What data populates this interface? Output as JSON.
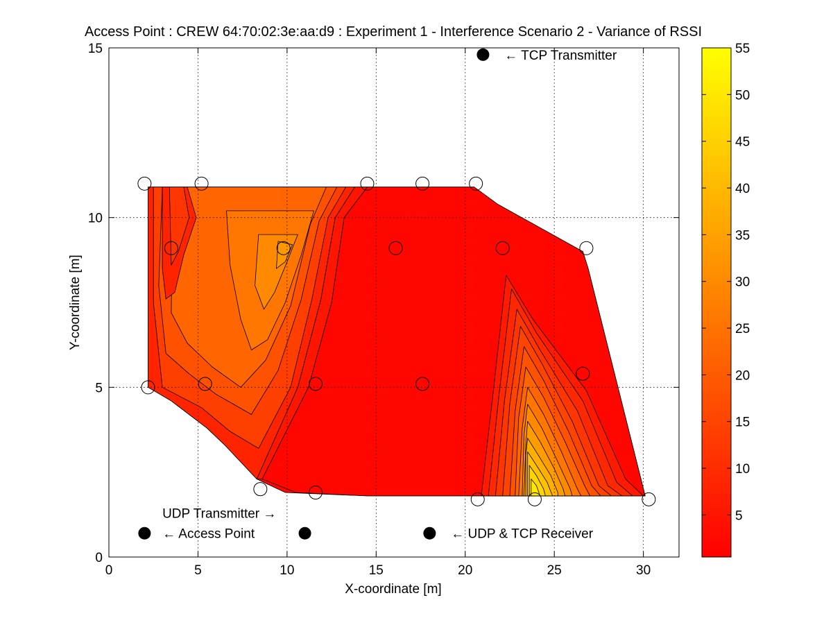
{
  "chart_data": {
    "type": "contour",
    "title": "Access Point : CREW 64:70:02:3e:aa:d9 : Experiment 1 - Interference Scenario 2 - Variance of RSSI",
    "xlabel": "X-coordinate [m]",
    "ylabel": "Y-coordinate [m]",
    "xlim": [
      0,
      32
    ],
    "ylim": [
      0,
      15
    ],
    "xticks": [
      0,
      5,
      10,
      15,
      20,
      25,
      30
    ],
    "yticks": [
      0,
      5,
      10,
      15
    ],
    "grid": true,
    "colormap": "autumn",
    "colorbar": {
      "range": [
        0.5,
        55
      ],
      "ticks": [
        5,
        10,
        15,
        20,
        25,
        30,
        35,
        40,
        45,
        50,
        55
      ],
      "colors": [
        "#ff0000",
        "#ffff00"
      ]
    },
    "measurement_points": [
      {
        "x": 2.0,
        "y": 11.0
      },
      {
        "x": 5.2,
        "y": 11.0
      },
      {
        "x": 14.5,
        "y": 11.0
      },
      {
        "x": 17.6,
        "y": 11.0
      },
      {
        "x": 20.6,
        "y": 11.0
      },
      {
        "x": 3.5,
        "y": 9.1
      },
      {
        "x": 9.8,
        "y": 9.1
      },
      {
        "x": 16.1,
        "y": 9.1
      },
      {
        "x": 22.1,
        "y": 9.1
      },
      {
        "x": 26.8,
        "y": 9.1
      },
      {
        "x": 2.2,
        "y": 5.0
      },
      {
        "x": 5.4,
        "y": 5.1
      },
      {
        "x": 11.6,
        "y": 5.1
      },
      {
        "x": 17.6,
        "y": 5.1
      },
      {
        "x": 26.6,
        "y": 5.4
      },
      {
        "x": 8.5,
        "y": 2.0
      },
      {
        "x": 11.6,
        "y": 1.9
      },
      {
        "x": 20.7,
        "y": 1.7
      },
      {
        "x": 23.9,
        "y": 1.7
      },
      {
        "x": 30.3,
        "y": 1.7
      }
    ],
    "domain_polygon": [
      [
        2.2,
        10.9
      ],
      [
        20.5,
        10.9
      ],
      [
        21.8,
        10.4
      ],
      [
        26.6,
        9.0
      ],
      [
        26.9,
        8.5
      ],
      [
        30.1,
        1.8
      ],
      [
        18.7,
        1.8
      ],
      [
        14.5,
        1.8
      ],
      [
        9.9,
        1.9
      ],
      [
        8.3,
        2.3
      ],
      [
        6.5,
        3.3
      ],
      [
        5.5,
        3.8
      ],
      [
        3.5,
        4.6
      ],
      [
        2.2,
        5.0
      ]
    ],
    "contour_regions": [
      {
        "level": 2,
        "polygon": [
          [
            14.5,
            10.9
          ],
          [
            20.5,
            10.9
          ],
          [
            21.8,
            10.4
          ],
          [
            26.6,
            9.0
          ],
          [
            26.9,
            8.5
          ],
          [
            30.1,
            1.8
          ],
          [
            14.5,
            1.8
          ],
          [
            10.5,
            1.9
          ],
          [
            8.6,
            2.3
          ],
          [
            11.2,
            5.0
          ],
          [
            12.5,
            7.5
          ],
          [
            13.2,
            10.0
          ]
        ]
      },
      {
        "level": 5,
        "polygon": [
          [
            13.8,
            10.9
          ],
          [
            14.5,
            10.9
          ],
          [
            13.2,
            10.0
          ],
          [
            12.5,
            7.5
          ],
          [
            11.2,
            5.0
          ],
          [
            8.6,
            2.3
          ],
          [
            8.3,
            2.3
          ],
          [
            10.6,
            5.0
          ],
          [
            11.9,
            7.6
          ],
          [
            12.7,
            10.0
          ]
        ]
      },
      {
        "level": 8,
        "polygon": [
          [
            2.2,
            10.9
          ],
          [
            13.8,
            10.9
          ],
          [
            12.7,
            10.0
          ],
          [
            11.9,
            7.6
          ],
          [
            10.6,
            5.0
          ],
          [
            8.3,
            2.3
          ],
          [
            6.5,
            3.3
          ],
          [
            5.5,
            3.8
          ],
          [
            3.5,
            4.6
          ],
          [
            2.2,
            5.0
          ]
        ]
      },
      {
        "level": 14,
        "polygon": [
          [
            2.5,
            10.9
          ],
          [
            13.3,
            10.9
          ],
          [
            12.3,
            10.0
          ],
          [
            11.4,
            7.6
          ],
          [
            10.2,
            5.0
          ],
          [
            8.4,
            3.2
          ],
          [
            6.8,
            3.7
          ],
          [
            5.2,
            4.4
          ],
          [
            3.0,
            5.0
          ],
          [
            2.5,
            7.5
          ]
        ]
      },
      {
        "level": 18,
        "polygon": [
          [
            3.0,
            10.9
          ],
          [
            12.8,
            10.9
          ],
          [
            11.8,
            9.9
          ],
          [
            10.8,
            7.6
          ],
          [
            9.5,
            5.5
          ],
          [
            8.0,
            4.2
          ],
          [
            6.0,
            4.8
          ],
          [
            4.5,
            5.4
          ],
          [
            3.2,
            6.0
          ],
          [
            2.8,
            8.0
          ]
        ]
      },
      {
        "level": 22,
        "polygon": [
          [
            3.6,
            10.9
          ],
          [
            12.2,
            10.9
          ],
          [
            11.3,
            9.8
          ],
          [
            10.2,
            7.4
          ],
          [
            8.8,
            5.8
          ],
          [
            7.4,
            5.0
          ],
          [
            5.8,
            5.6
          ],
          [
            4.4,
            6.3
          ],
          [
            3.5,
            7.2
          ]
        ]
      },
      {
        "level": 8,
        "polygon": [
          [
            3.0,
            10.9
          ],
          [
            4.4,
            10.9
          ],
          [
            4.9,
            10.0
          ],
          [
            4.2,
            8.9
          ],
          [
            3.7,
            7.8
          ],
          [
            3.2,
            7.6
          ],
          [
            3.0,
            8.5
          ]
        ]
      },
      {
        "level": 12,
        "polygon": [
          [
            3.4,
            10.9
          ],
          [
            4.2,
            10.9
          ],
          [
            4.5,
            10.0
          ],
          [
            3.9,
            9.0
          ],
          [
            3.5,
            8.6
          ]
        ]
      },
      {
        "level": 26,
        "polygon": [
          [
            6.6,
            10.2
          ],
          [
            11.5,
            10.2
          ],
          [
            10.8,
            8.9
          ],
          [
            9.9,
            7.5
          ],
          [
            8.9,
            6.4
          ],
          [
            8.0,
            6.1
          ],
          [
            7.4,
            7.0
          ],
          [
            6.8,
            8.6
          ]
        ]
      },
      {
        "level": 30,
        "polygon": [
          [
            8.4,
            9.5
          ],
          [
            10.6,
            9.5
          ],
          [
            10.0,
            8.7
          ],
          [
            9.3,
            7.8
          ],
          [
            8.7,
            7.3
          ],
          [
            8.2,
            8.0
          ]
        ]
      },
      {
        "level": 33,
        "polygon": [
          [
            9.5,
            9.3
          ],
          [
            10.3,
            9.2
          ],
          [
            9.9,
            8.7
          ],
          [
            9.4,
            8.5
          ]
        ]
      },
      {
        "level": 6,
        "polygon": [
          [
            22.3,
            8.3
          ],
          [
            23.8,
            7.0
          ],
          [
            26.8,
            4.9
          ],
          [
            29.0,
            2.3
          ],
          [
            30.0,
            1.8
          ],
          [
            20.9,
            1.8
          ],
          [
            21.6,
            5.0
          ]
        ]
      },
      {
        "level": 9,
        "polygon": [
          [
            22.6,
            7.9
          ],
          [
            24.0,
            6.6
          ],
          [
            26.6,
            4.6
          ],
          [
            28.5,
            2.2
          ],
          [
            29.4,
            1.8
          ],
          [
            21.3,
            1.8
          ],
          [
            21.9,
            4.8
          ]
        ]
      },
      {
        "level": 12,
        "polygon": [
          [
            22.9,
            7.3
          ],
          [
            24.2,
            6.1
          ],
          [
            26.3,
            4.3
          ],
          [
            28.0,
            2.1
          ],
          [
            28.8,
            1.8
          ],
          [
            21.7,
            1.8
          ],
          [
            22.2,
            4.6
          ]
        ]
      },
      {
        "level": 15,
        "polygon": [
          [
            23.1,
            6.8
          ],
          [
            24.3,
            5.7
          ],
          [
            26.0,
            4.0
          ],
          [
            27.5,
            2.1
          ],
          [
            28.2,
            1.8
          ],
          [
            22.1,
            1.8
          ],
          [
            22.5,
            4.5
          ]
        ]
      },
      {
        "level": 18,
        "polygon": [
          [
            23.3,
            6.2
          ],
          [
            24.4,
            5.2
          ],
          [
            25.8,
            3.7
          ],
          [
            27.1,
            2.1
          ],
          [
            27.6,
            1.8
          ],
          [
            22.5,
            1.8
          ],
          [
            22.8,
            4.3
          ]
        ]
      },
      {
        "level": 22,
        "polygon": [
          [
            23.4,
            5.6
          ],
          [
            24.4,
            4.7
          ],
          [
            25.6,
            3.4
          ],
          [
            26.7,
            2.1
          ],
          [
            27.0,
            1.8
          ],
          [
            22.8,
            1.8
          ],
          [
            23.0,
            4.1
          ]
        ]
      },
      {
        "level": 26,
        "polygon": [
          [
            23.5,
            5.0
          ],
          [
            24.4,
            4.2
          ],
          [
            25.4,
            3.1
          ],
          [
            26.3,
            2.0
          ],
          [
            26.5,
            1.8
          ],
          [
            23.0,
            1.8
          ],
          [
            23.2,
            3.8
          ]
        ]
      },
      {
        "level": 30,
        "polygon": [
          [
            23.5,
            4.5
          ],
          [
            24.3,
            3.8
          ],
          [
            25.2,
            2.8
          ],
          [
            25.9,
            2.0
          ],
          [
            26.0,
            1.8
          ],
          [
            23.2,
            1.8
          ],
          [
            23.3,
            3.6
          ]
        ]
      },
      {
        "level": 34,
        "polygon": [
          [
            23.5,
            4.0
          ],
          [
            24.2,
            3.4
          ],
          [
            25.0,
            2.6
          ],
          [
            25.5,
            2.0
          ],
          [
            25.6,
            1.8
          ],
          [
            23.3,
            1.8
          ],
          [
            23.4,
            3.3
          ]
        ]
      },
      {
        "level": 38,
        "polygon": [
          [
            23.5,
            3.5
          ],
          [
            24.1,
            3.0
          ],
          [
            24.8,
            2.4
          ],
          [
            25.2,
            1.9
          ],
          [
            25.2,
            1.8
          ],
          [
            23.4,
            1.8
          ],
          [
            23.4,
            3.0
          ]
        ]
      },
      {
        "level": 42,
        "polygon": [
          [
            23.5,
            3.1
          ],
          [
            24.0,
            2.7
          ],
          [
            24.6,
            2.2
          ],
          [
            24.9,
            1.8
          ],
          [
            23.5,
            1.8
          ],
          [
            23.5,
            2.7
          ]
        ]
      },
      {
        "level": 46,
        "polygon": [
          [
            23.6,
            2.7
          ],
          [
            24.0,
            2.4
          ],
          [
            24.4,
            2.0
          ],
          [
            24.5,
            1.8
          ],
          [
            23.6,
            1.8
          ]
        ]
      },
      {
        "level": 50,
        "polygon": [
          [
            23.7,
            2.3
          ],
          [
            24.0,
            2.1
          ],
          [
            24.2,
            1.8
          ],
          [
            23.7,
            1.8
          ]
        ]
      }
    ],
    "annotations": [
      {
        "text": "← TCP Transmitter",
        "marker": {
          "x": 21.0,
          "y": 14.8
        },
        "x": 22.2,
        "y": 14.8
      },
      {
        "text": "UDP Transmitter →",
        "x": 3.0,
        "y": 1.3
      },
      {
        "text": "← Access Point",
        "marker": {
          "x": 2.0,
          "y": 0.7
        },
        "x": 3.0,
        "y": 0.7
      },
      {
        "text": "← UDP & TCP Receiver",
        "marker": {
          "x": 18.0,
          "y": 0.7
        },
        "x": 19.2,
        "y": 0.7
      }
    ],
    "extra_markers": [
      {
        "x": 11.0,
        "y": 0.7
      }
    ]
  }
}
